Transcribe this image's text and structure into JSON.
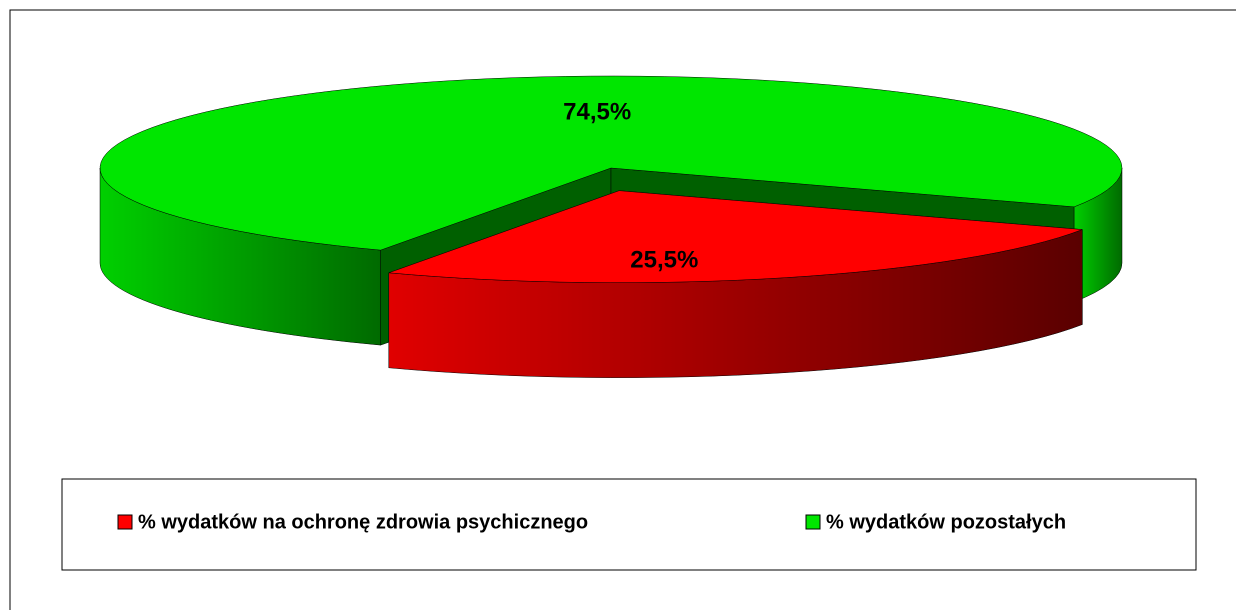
{
  "chart_data": {
    "type": "pie",
    "categories": [
      "% wydatków na ochronę zdrowia psychicznego",
      "% wydatków pozostałych"
    ],
    "values": [
      25.5,
      74.5
    ],
    "value_labels": [
      "25,5%",
      "74,5%"
    ],
    "colors": [
      "#ff0000",
      "#00e600"
    ]
  }
}
